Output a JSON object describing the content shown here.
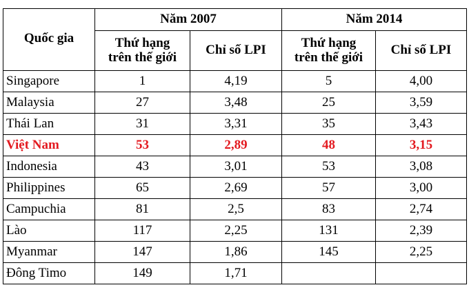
{
  "header": {
    "country_label": "Quốc gia",
    "year_2007": "Năm 2007",
    "year_2014": "Năm 2014",
    "rank_label_2007": [
      "Thứ hạng",
      "trên thế giới"
    ],
    "lpi_label_2007": "Chỉ số LPI",
    "rank_label_2014": [
      "Thứ hạng",
      "trên thế giới"
    ],
    "lpi_label_2014": "Chỉ số LPI"
  },
  "rows": [
    {
      "country": "Singapore",
      "rank_2007": "1",
      "lpi_2007": "4,19",
      "rank_2014": "5",
      "lpi_2014": "4,00"
    },
    {
      "country": "Malaysia",
      "rank_2007": "27",
      "lpi_2007": "3,48",
      "rank_2014": "25",
      "lpi_2014": "3,59"
    },
    {
      "country": "Thái Lan",
      "rank_2007": "31",
      "lpi_2007": "3,31",
      "rank_2014": "35",
      "lpi_2014": "3,43"
    },
    {
      "country": "Việt Nam",
      "rank_2007": "53",
      "lpi_2007": "2,89",
      "rank_2014": "48",
      "lpi_2014": "3,15"
    },
    {
      "country": "Indonesia",
      "rank_2007": "43",
      "lpi_2007": "3,01",
      "rank_2014": "53",
      "lpi_2014": "3,08"
    },
    {
      "country": "Philippines",
      "rank_2007": "65",
      "lpi_2007": "2,69",
      "rank_2014": "57",
      "lpi_2014": "3,00"
    },
    {
      "country": "Campuchia",
      "rank_2007": "81",
      "lpi_2007": "2,5",
      "rank_2014": "83",
      "lpi_2014": "2,74"
    },
    {
      "country": "Lào",
      "rank_2007": "117",
      "lpi_2007": "2,25",
      "rank_2014": "131",
      "lpi_2014": "2,39"
    },
    {
      "country": "Myanmar",
      "rank_2007": "147",
      "lpi_2007": "1,86",
      "rank_2014": "145",
      "lpi_2014": "2,25"
    },
    {
      "country": "Đông Timo",
      "rank_2007": "149",
      "lpi_2007": "1,71",
      "rank_2014": "",
      "lpi_2014": ""
    }
  ],
  "highlight_row": 3,
  "colors": {
    "highlight": "#e3191f",
    "text": "#000000",
    "border": "#000000"
  }
}
